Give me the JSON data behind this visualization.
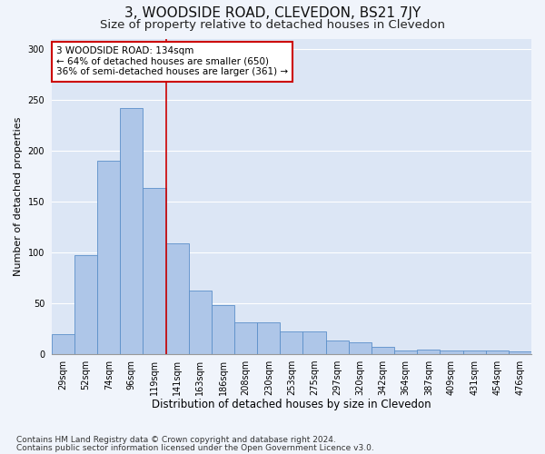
{
  "title": "3, WOODSIDE ROAD, CLEVEDON, BS21 7JY",
  "subtitle": "Size of property relative to detached houses in Clevedon",
  "xlabel": "Distribution of detached houses by size in Clevedon",
  "ylabel": "Number of detached properties",
  "footnote1": "Contains HM Land Registry data © Crown copyright and database right 2024.",
  "footnote2": "Contains public sector information licensed under the Open Government Licence v3.0.",
  "bar_labels": [
    "29sqm",
    "52sqm",
    "74sqm",
    "96sqm",
    "119sqm",
    "141sqm",
    "163sqm",
    "186sqm",
    "208sqm",
    "230sqm",
    "253sqm",
    "275sqm",
    "297sqm",
    "320sqm",
    "342sqm",
    "364sqm",
    "387sqm",
    "409sqm",
    "431sqm",
    "454sqm",
    "476sqm"
  ],
  "bar_values": [
    19,
    97,
    190,
    242,
    163,
    109,
    62,
    48,
    31,
    31,
    22,
    22,
    13,
    11,
    7,
    3,
    4,
    3,
    3,
    3,
    2
  ],
  "bar_color": "#aec6e8",
  "bar_edge_color": "#5b8fc9",
  "plot_bg_color": "#dce6f5",
  "fig_bg_color": "#f0f4fb",
  "annotation_text_line1": "3 WOODSIDE ROAD: 134sqm",
  "annotation_text_line2": "← 64% of detached houses are smaller (650)",
  "annotation_text_line3": "36% of semi-detached houses are larger (361) →",
  "annotation_box_facecolor": "#ffffff",
  "annotation_box_edgecolor": "#cc0000",
  "vline_color": "#cc0000",
  "vline_x_index": 4.5,
  "ylim": [
    0,
    310
  ],
  "yticks": [
    0,
    50,
    100,
    150,
    200,
    250,
    300
  ],
  "grid_color": "#ffffff",
  "title_fontsize": 11,
  "subtitle_fontsize": 9.5,
  "ylabel_fontsize": 8,
  "xlabel_fontsize": 8.5,
  "tick_fontsize": 7,
  "annotation_fontsize": 7.5,
  "footnote_fontsize": 6.5
}
